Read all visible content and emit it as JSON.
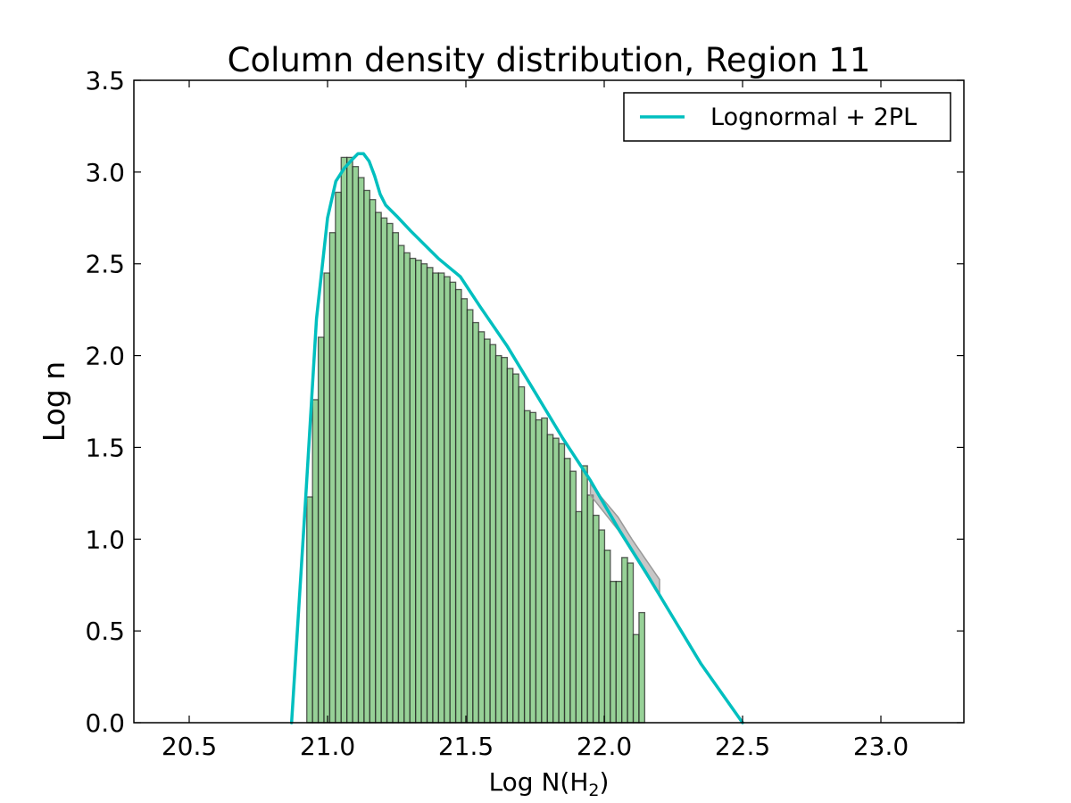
{
  "chart_data": {
    "type": "bar",
    "title": "Column density distribution, Region 11",
    "xlabel_main": "Log N(H",
    "xlabel_sub": "2",
    "xlabel_tail": ")",
    "ylabel": "Log n",
    "xlim": [
      20.3,
      23.3
    ],
    "ylim": [
      0.0,
      3.5
    ],
    "xticks": [
      20.5,
      21.0,
      21.5,
      22.0,
      22.5,
      23.0
    ],
    "xtick_labels": [
      "20.5",
      "21.0",
      "21.5",
      "22.0",
      "22.5",
      "23.0"
    ],
    "yticks": [
      0.0,
      0.5,
      1.0,
      1.5,
      2.0,
      2.5,
      3.0,
      3.5
    ],
    "ytick_labels": [
      "0.0",
      "0.5",
      "1.0",
      "1.5",
      "2.0",
      "2.5",
      "3.0",
      "3.5"
    ],
    "grid": false,
    "legend_position": "top-right",
    "histogram": {
      "color": "#5fb85f",
      "bin_width": 0.0207,
      "bin_start": 20.925,
      "values": [
        1.23,
        1.76,
        2.1,
        2.45,
        2.67,
        2.89,
        3.08,
        3.08,
        3.03,
        2.97,
        2.9,
        2.85,
        2.78,
        2.75,
        2.72,
        2.67,
        2.6,
        2.56,
        2.53,
        2.52,
        2.5,
        2.48,
        2.45,
        2.45,
        2.43,
        2.4,
        2.36,
        2.31,
        2.25,
        2.18,
        2.13,
        2.09,
        2.06,
        2.0,
        1.99,
        1.93,
        1.9,
        1.83,
        1.7,
        1.69,
        1.65,
        1.66,
        1.57,
        1.55,
        1.52,
        1.44,
        1.37,
        1.15,
        1.4,
        1.24,
        1.13,
        1.05,
        0.94,
        0.77,
        0.77,
        0.9,
        0.87,
        0.48,
        0.6
      ]
    },
    "series": [
      {
        "name": "Lognormal + 2PL",
        "color": "#00bfbf",
        "x": [
          20.87,
          20.92,
          20.96,
          21.0,
          21.03,
          21.06,
          21.09,
          21.11,
          21.13,
          21.15,
          21.17,
          21.19,
          21.21,
          21.25,
          21.3,
          21.4,
          21.48,
          21.55,
          21.65,
          21.75,
          21.85,
          21.95,
          22.05,
          22.15,
          22.25,
          22.35,
          22.5
        ],
        "y": [
          0.0,
          1.2,
          2.2,
          2.75,
          2.95,
          3.02,
          3.07,
          3.1,
          3.1,
          3.06,
          2.98,
          2.88,
          2.82,
          2.76,
          2.68,
          2.53,
          2.43,
          2.27,
          2.05,
          1.8,
          1.55,
          1.32,
          1.06,
          0.82,
          0.57,
          0.32,
          0.0
        ]
      }
    ],
    "error_band": {
      "color": "#999999",
      "x": [
        21.95,
        22.05,
        22.1,
        22.15,
        22.2
      ],
      "y_low": [
        1.24,
        1.05,
        0.93,
        0.81,
        0.69
      ],
      "y_high": [
        1.3,
        1.12,
        1.0,
        0.89,
        0.78
      ]
    }
  }
}
